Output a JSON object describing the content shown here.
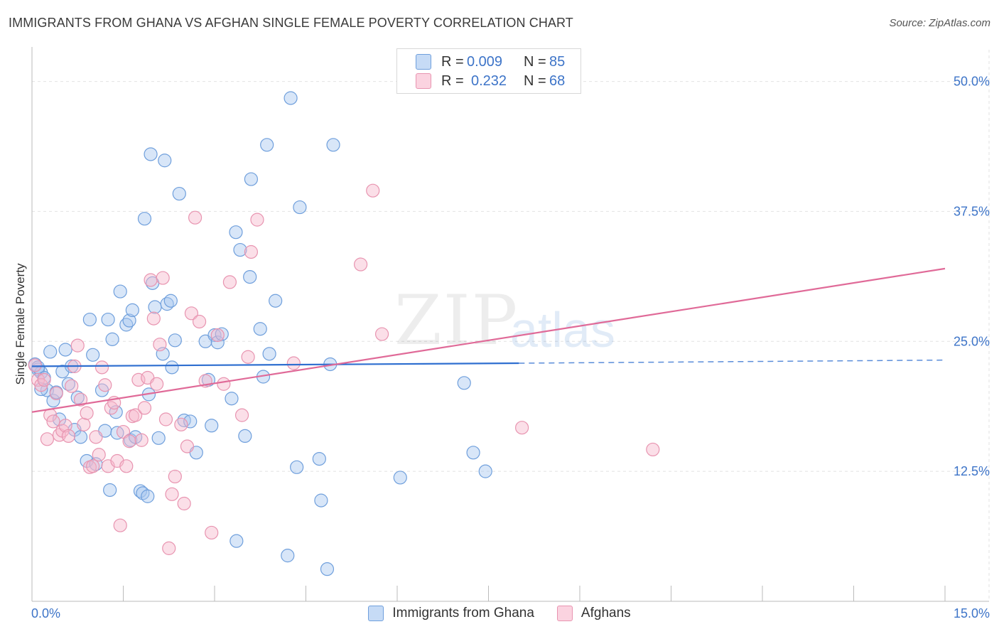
{
  "title": "IMMIGRANTS FROM GHANA VS AFGHAN SINGLE FEMALE POVERTY CORRELATION CHART",
  "source": "Source: ZipAtlas.com",
  "watermark": {
    "zip": "ZIP",
    "atlas": "atlas"
  },
  "colors": {
    "blue_fill": "#a9c8f0",
    "blue_stroke": "#6f9fdc",
    "blue_line": "#2f6fd0",
    "pink_fill": "#f6b9cd",
    "pink_stroke": "#e894b0",
    "pink_line": "#e06a98",
    "tick_label": "#3d74c8",
    "grid": "#e2e2e2"
  },
  "legend": {
    "rows": [
      {
        "r_label": "R =",
        "r_value": "0.009",
        "n_label": "N =",
        "n_value": "85"
      },
      {
        "r_label": "R =",
        "r_value": "0.232",
        "n_label": "N =",
        "n_value": "68"
      }
    ]
  },
  "bottom_legend": [
    "Immigrants from Ghana",
    "Afghans"
  ],
  "chart_data": {
    "type": "scatter",
    "ylabel": "Single Female Poverty",
    "xlim": [
      0,
      15
    ],
    "ylim": [
      0,
      52.5
    ],
    "x_tick_labels": [
      {
        "value": 0,
        "label": "0.0%"
      },
      {
        "value": 15,
        "label": "15.0%"
      }
    ],
    "y_tick_labels": [
      {
        "value": 12.5,
        "label": "12.5%"
      },
      {
        "value": 25,
        "label": "25.0%"
      },
      {
        "value": 37.5,
        "label": "37.5%"
      },
      {
        "value": 50,
        "label": "50.0%"
      }
    ],
    "grid": true,
    "legend_position": "top-center",
    "series": [
      {
        "name": "Immigrants from Ghana",
        "color": "#a9c8f0",
        "trend": {
          "x": [
            0,
            8.0
          ],
          "y": [
            22.6,
            22.9
          ],
          "dashed_to_x": 15,
          "dashed_y": 23.2
        },
        "points": [
          [
            0.05,
            22.8
          ],
          [
            0.1,
            22.3
          ],
          [
            0.15,
            22.0
          ],
          [
            0.2,
            21.5
          ],
          [
            0.25,
            20.3
          ],
          [
            0.3,
            24.0
          ],
          [
            0.35,
            19.3
          ],
          [
            0.4,
            20.1
          ],
          [
            0.45,
            17.5
          ],
          [
            0.5,
            22.1
          ],
          [
            0.55,
            24.2
          ],
          [
            0.6,
            20.9
          ],
          [
            0.65,
            22.6
          ],
          [
            0.7,
            16.5
          ],
          [
            0.75,
            19.6
          ],
          [
            0.8,
            15.8
          ],
          [
            0.9,
            13.5
          ],
          [
            0.95,
            27.1
          ],
          [
            1.0,
            23.7
          ],
          [
            1.05,
            13.2
          ],
          [
            1.15,
            20.3
          ],
          [
            1.2,
            16.4
          ],
          [
            1.25,
            27.1
          ],
          [
            1.28,
            10.7
          ],
          [
            1.32,
            25.2
          ],
          [
            1.38,
            18.2
          ],
          [
            1.45,
            29.8
          ],
          [
            1.55,
            26.6
          ],
          [
            1.6,
            27.0
          ],
          [
            1.62,
            15.5
          ],
          [
            1.65,
            28.0
          ],
          [
            1.7,
            15.8
          ],
          [
            1.78,
            10.6
          ],
          [
            1.82,
            10.4
          ],
          [
            1.85,
            36.8
          ],
          [
            1.92,
            19.9
          ],
          [
            1.95,
            43.0
          ],
          [
            1.98,
            30.6
          ],
          [
            2.02,
            28.3
          ],
          [
            2.08,
            15.7
          ],
          [
            2.15,
            23.8
          ],
          [
            2.18,
            42.4
          ],
          [
            2.22,
            28.6
          ],
          [
            2.28,
            28.9
          ],
          [
            2.35,
            25.1
          ],
          [
            2.42,
            39.2
          ],
          [
            2.5,
            17.4
          ],
          [
            2.6,
            17.3
          ],
          [
            2.7,
            14.3
          ],
          [
            2.85,
            25.0
          ],
          [
            2.9,
            21.3
          ],
          [
            2.95,
            16.9
          ],
          [
            3.0,
            25.6
          ],
          [
            3.05,
            24.9
          ],
          [
            3.12,
            25.7
          ],
          [
            3.28,
            19.5
          ],
          [
            3.35,
            35.5
          ],
          [
            3.42,
            33.8
          ],
          [
            3.5,
            15.9
          ],
          [
            3.58,
            31.2
          ],
          [
            3.6,
            40.6
          ],
          [
            3.75,
            26.2
          ],
          [
            3.8,
            21.6
          ],
          [
            3.86,
            43.9
          ],
          [
            3.9,
            23.8
          ],
          [
            4.0,
            28.9
          ],
          [
            4.2,
            4.4
          ],
          [
            4.25,
            48.4
          ],
          [
            4.35,
            12.9
          ],
          [
            4.4,
            37.9
          ],
          [
            4.72,
            13.7
          ],
          [
            4.75,
            9.7
          ],
          [
            4.85,
            3.1
          ],
          [
            4.9,
            22.8
          ],
          [
            4.95,
            43.9
          ],
          [
            6.05,
            11.9
          ],
          [
            7.1,
            21.0
          ],
          [
            7.25,
            14.3
          ],
          [
            7.45,
            12.5
          ],
          [
            0.1,
            22.5
          ],
          [
            0.15,
            20.4
          ],
          [
            1.4,
            16.2
          ],
          [
            1.9,
            10.1
          ],
          [
            2.3,
            22.5
          ],
          [
            3.36,
            5.8
          ]
        ]
      },
      {
        "name": "Afghans",
        "color": "#f6b9cd",
        "trend": {
          "x": [
            0,
            15
          ],
          "y": [
            18.2,
            32.0
          ]
        },
        "points": [
          [
            0.05,
            22.7
          ],
          [
            0.1,
            21.3
          ],
          [
            0.15,
            20.8
          ],
          [
            0.2,
            21.3
          ],
          [
            0.25,
            15.6
          ],
          [
            0.3,
            17.9
          ],
          [
            0.35,
            17.3
          ],
          [
            0.4,
            20.0
          ],
          [
            0.45,
            16.0
          ],
          [
            0.5,
            16.4
          ],
          [
            0.55,
            16.9
          ],
          [
            0.6,
            15.9
          ],
          [
            0.65,
            20.7
          ],
          [
            0.7,
            22.6
          ],
          [
            0.75,
            24.6
          ],
          [
            0.8,
            19.4
          ],
          [
            0.85,
            17.0
          ],
          [
            0.9,
            18.1
          ],
          [
            0.95,
            12.9
          ],
          [
            1.0,
            13.0
          ],
          [
            1.05,
            15.8
          ],
          [
            1.1,
            14.1
          ],
          [
            1.15,
            22.5
          ],
          [
            1.2,
            20.8
          ],
          [
            1.25,
            13.0
          ],
          [
            1.3,
            18.6
          ],
          [
            1.35,
            19.1
          ],
          [
            1.4,
            13.5
          ],
          [
            1.45,
            7.3
          ],
          [
            1.5,
            16.3
          ],
          [
            1.55,
            13.0
          ],
          [
            1.6,
            15.4
          ],
          [
            1.65,
            17.8
          ],
          [
            1.7,
            17.9
          ],
          [
            1.75,
            21.3
          ],
          [
            1.8,
            15.5
          ],
          [
            1.85,
            18.6
          ],
          [
            1.9,
            21.5
          ],
          [
            1.95,
            30.9
          ],
          [
            2.0,
            27.2
          ],
          [
            2.05,
            20.9
          ],
          [
            2.1,
            24.7
          ],
          [
            2.15,
            31.1
          ],
          [
            2.2,
            17.5
          ],
          [
            2.25,
            5.1
          ],
          [
            2.3,
            10.3
          ],
          [
            2.35,
            12.0
          ],
          [
            2.45,
            17.0
          ],
          [
            2.5,
            9.4
          ],
          [
            2.55,
            14.9
          ],
          [
            2.62,
            27.7
          ],
          [
            2.68,
            36.9
          ],
          [
            2.75,
            26.9
          ],
          [
            2.85,
            21.2
          ],
          [
            2.95,
            6.6
          ],
          [
            3.05,
            25.6
          ],
          [
            3.15,
            20.9
          ],
          [
            3.25,
            30.7
          ],
          [
            3.45,
            17.9
          ],
          [
            3.55,
            23.5
          ],
          [
            3.6,
            33.6
          ],
          [
            3.7,
            36.7
          ],
          [
            4.3,
            22.9
          ],
          [
            5.4,
            32.4
          ],
          [
            5.6,
            39.5
          ],
          [
            5.75,
            25.7
          ],
          [
            8.05,
            16.7
          ],
          [
            10.2,
            14.6
          ]
        ]
      }
    ]
  }
}
